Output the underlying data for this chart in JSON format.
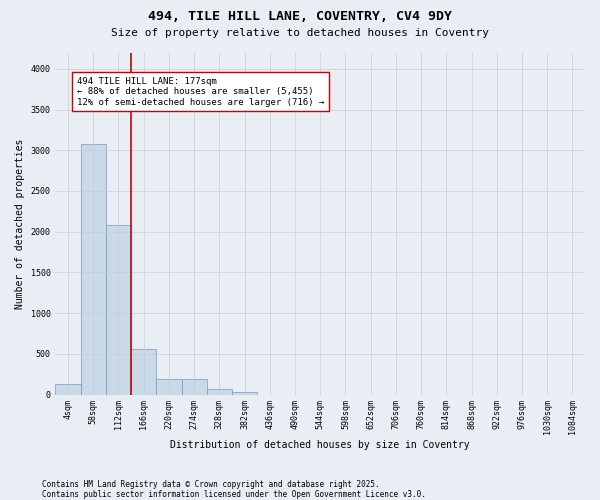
{
  "title_line1": "494, TILE HILL LANE, COVENTRY, CV4 9DY",
  "title_line2": "Size of property relative to detached houses in Coventry",
  "xlabel": "Distribution of detached houses by size in Coventry",
  "ylabel": "Number of detached properties",
  "categories": [
    "4sqm",
    "58sqm",
    "112sqm",
    "166sqm",
    "220sqm",
    "274sqm",
    "328sqm",
    "382sqm",
    "436sqm",
    "490sqm",
    "544sqm",
    "598sqm",
    "652sqm",
    "706sqm",
    "760sqm",
    "814sqm",
    "868sqm",
    "922sqm",
    "976sqm",
    "1030sqm",
    "1084sqm"
  ],
  "values": [
    130,
    3080,
    2080,
    560,
    195,
    195,
    65,
    35,
    0,
    0,
    0,
    0,
    0,
    0,
    0,
    0,
    0,
    0,
    0,
    0,
    0
  ],
  "bar_color": "#c9d9e8",
  "bar_edge_color": "#7799bb",
  "vline_color": "#cc0000",
  "annotation_text": "494 TILE HILL LANE: 177sqm\n← 88% of detached houses are smaller (5,455)\n12% of semi-detached houses are larger (716) →",
  "annotation_box_color": "#ffffff",
  "annotation_box_edge_color": "#cc0000",
  "ylim": [
    0,
    4200
  ],
  "yticks": [
    0,
    500,
    1000,
    1500,
    2000,
    2500,
    3000,
    3500,
    4000
  ],
  "grid_color": "#cccccc",
  "background_color": "#e8eef4",
  "footer_line1": "Contains HM Land Registry data © Crown copyright and database right 2025.",
  "footer_line2": "Contains public sector information licensed under the Open Government Licence v3.0.",
  "title_fontsize": 9.5,
  "subtitle_fontsize": 8,
  "axis_label_fontsize": 7,
  "tick_fontsize": 6,
  "annotation_fontsize": 6.5,
  "footer_fontsize": 5.5,
  "ylabel_fontsize": 7
}
